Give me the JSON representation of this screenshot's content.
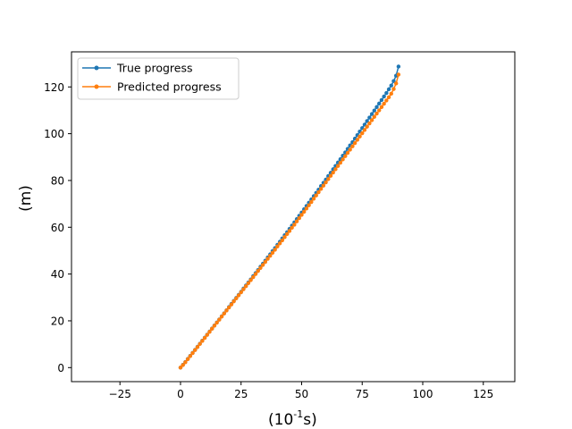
{
  "chart_data": {
    "type": "line",
    "xlabel_main": "(10",
    "xlabel_exp": "-1",
    "xlabel_unit": "s)",
    "ylabel": "(m)",
    "xlim": [
      -45,
      138
    ],
    "ylim": [
      -6,
      135
    ],
    "x_ticks": [
      -25,
      0,
      25,
      50,
      75,
      100,
      125
    ],
    "y_ticks": [
      0,
      20,
      40,
      60,
      80,
      100,
      120
    ],
    "grid": false,
    "legend_position": "top-left",
    "x": [
      0,
      1,
      2,
      3,
      4,
      5,
      6,
      7,
      8,
      9,
      10,
      11,
      12,
      13,
      14,
      15,
      16,
      17,
      18,
      19,
      20,
      21,
      22,
      23,
      24,
      25,
      26,
      27,
      28,
      29,
      30,
      31,
      32,
      33,
      34,
      35,
      36,
      37,
      38,
      39,
      40,
      41,
      42,
      43,
      44,
      45,
      46,
      47,
      48,
      49,
      50,
      51,
      52,
      53,
      54,
      55,
      56,
      57,
      58,
      59,
      60,
      61,
      62,
      63,
      64,
      65,
      66,
      67,
      68,
      69,
      70,
      71,
      72,
      73,
      74,
      75,
      76,
      77,
      78,
      79,
      80,
      81,
      82,
      83,
      84,
      85,
      86,
      87,
      88,
      89,
      90
    ],
    "series": [
      {
        "name": "True progress",
        "color": "#1f77b4",
        "values": [
          0,
          1.2,
          2.4,
          3.7,
          5.0,
          6.3,
          7.6,
          8.9,
          10.2,
          11.5,
          12.8,
          14.1,
          15.4,
          16.7,
          18.0,
          19.3,
          20.6,
          21.9,
          23.2,
          24.5,
          25.9,
          27.2,
          28.5,
          29.8,
          31.1,
          32.4,
          33.8,
          35.1,
          36.4,
          37.7,
          39.1,
          40.4,
          41.7,
          43.1,
          44.4,
          45.7,
          47.1,
          48.4,
          49.8,
          51.1,
          52.5,
          53.8,
          55.2,
          56.6,
          57.9,
          59.3,
          60.7,
          62.1,
          63.5,
          64.9,
          66.3,
          67.7,
          69.1,
          70.5,
          71.9,
          73.3,
          74.7,
          76.1,
          77.6,
          79.0,
          80.4,
          81.9,
          83.3,
          84.8,
          86.2,
          87.7,
          89.1,
          90.6,
          92.0,
          93.5,
          95.0,
          96.4,
          97.9,
          99.4,
          100.9,
          102.4,
          103.9,
          105.4,
          106.9,
          108.4,
          109.9,
          111.4,
          112.9,
          114.4,
          115.9,
          117.4,
          119.0,
          120.6,
          122.5,
          124.8,
          128.7
        ]
      },
      {
        "name": "Predicted progress",
        "color": "#ff7f0e",
        "values": [
          0,
          1.1,
          2.3,
          3.6,
          4.9,
          6.2,
          7.5,
          8.8,
          10.1,
          11.4,
          12.7,
          14.0,
          15.3,
          16.6,
          17.9,
          19.2,
          20.5,
          21.8,
          23.1,
          24.4,
          25.7,
          27.0,
          28.3,
          29.6,
          30.9,
          32.2,
          33.5,
          34.8,
          36.1,
          37.4,
          38.7,
          40.0,
          41.3,
          42.6,
          43.9,
          45.2,
          46.5,
          47.8,
          49.1,
          50.4,
          51.8,
          53.1,
          54.4,
          55.8,
          57.1,
          58.4,
          59.8,
          61.1,
          62.5,
          63.9,
          65.3,
          66.6,
          68.0,
          69.4,
          70.8,
          72.2,
          73.6,
          75.0,
          76.4,
          77.8,
          79.2,
          80.6,
          82.0,
          83.4,
          84.8,
          86.2,
          87.6,
          89.0,
          90.4,
          91.8,
          93.2,
          94.6,
          96.0,
          97.4,
          98.8,
          100.2,
          101.6,
          103.0,
          104.4,
          105.8,
          107.2,
          108.6,
          110.0,
          111.4,
          112.8,
          114.2,
          115.6,
          117.1,
          119.1,
          121.5,
          125.3
        ]
      }
    ]
  }
}
